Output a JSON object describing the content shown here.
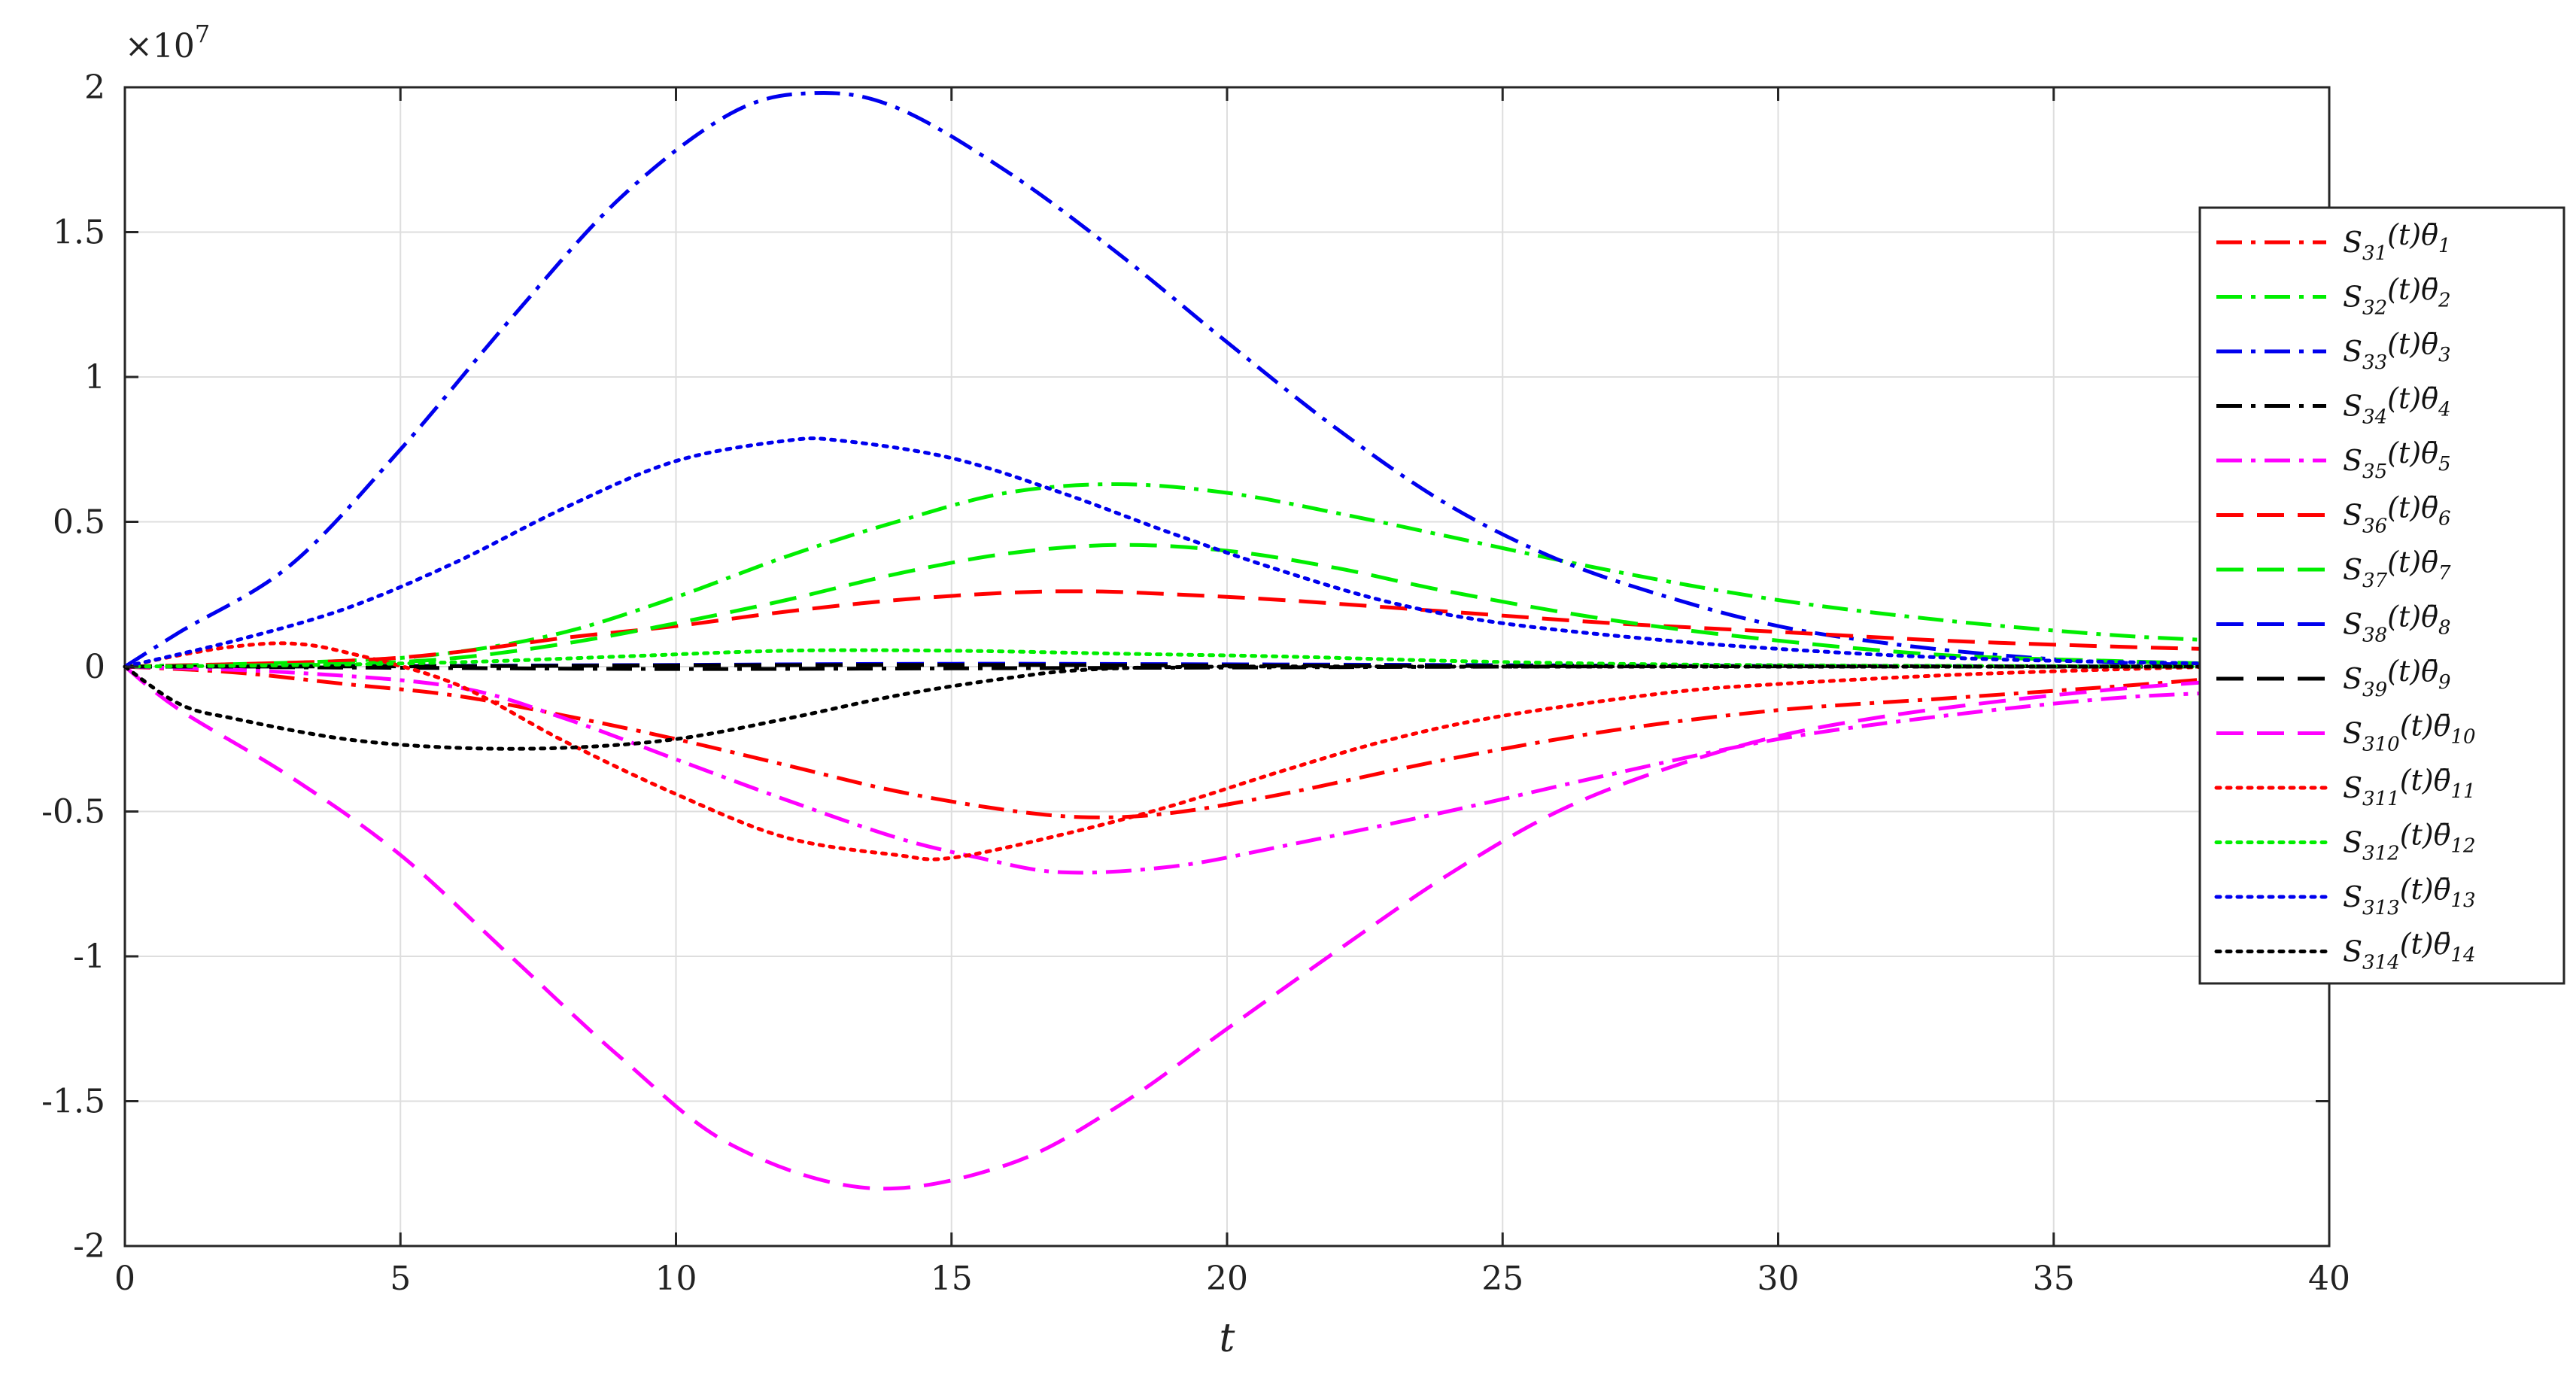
{
  "chart_data": {
    "type": "line",
    "title": "",
    "xlabel": "t",
    "ylabel": "",
    "xlim": [
      0,
      40
    ],
    "ylim": [
      -20000000,
      20000000
    ],
    "y_exponent_label": "×10",
    "y_exponent_power": "7",
    "xticks": [
      0,
      5,
      10,
      15,
      20,
      25,
      30,
      35,
      40
    ],
    "xtick_labels": [
      "0",
      "5",
      "10",
      "15",
      "20",
      "25",
      "30",
      "35",
      "40"
    ],
    "yticks": [
      -20000000,
      -15000000,
      -10000000,
      -5000000,
      0,
      5000000,
      10000000,
      15000000,
      20000000
    ],
    "ytick_labels": [
      "-2",
      "-1.5",
      "-1",
      "-0.5",
      "0",
      "0.5",
      "1",
      "1.5",
      "2"
    ],
    "grid": true,
    "legend_position": "right",
    "series": [
      {
        "name": "S31(t)θ̄1",
        "sub": "31",
        "theta_sub": "1",
        "color": "#ff0000",
        "style": "dashdot",
        "x": [
          0,
          2,
          4,
          6,
          8,
          10,
          12,
          14,
          16,
          17.5,
          19,
          21,
          24,
          27,
          30,
          33,
          36,
          38
        ],
        "y": [
          0,
          -200000,
          -600000,
          -1000000,
          -1700000,
          -2500000,
          -3400000,
          -4300000,
          -4950000,
          -5200000,
          -5050000,
          -4400000,
          -3200000,
          -2200000,
          -1500000,
          -1100000,
          -700000,
          -400000
        ]
      },
      {
        "name": "S32(t)θ̄2",
        "sub": "32",
        "theta_sub": "2",
        "color": "#00ee00",
        "style": "dashdot",
        "x": [
          0,
          4,
          6,
          8,
          10,
          12,
          14,
          16,
          18,
          20,
          22,
          24,
          27,
          30,
          33,
          36,
          38
        ],
        "y": [
          0,
          200000,
          500000,
          1200000,
          2400000,
          3800000,
          5000000,
          6000000,
          6300000,
          6000000,
          5300000,
          4500000,
          3300000,
          2300000,
          1600000,
          1100000,
          900000
        ]
      },
      {
        "name": "S33(t)θ̄3",
        "sub": "33",
        "theta_sub": "3",
        "color": "#0000ee",
        "style": "dashdot",
        "x": [
          0,
          1,
          3,
          5,
          7,
          9,
          11,
          12.5,
          14,
          16,
          18,
          20,
          22,
          24,
          26,
          28,
          30,
          32,
          34,
          36,
          38
        ],
        "y": [
          0,
          1200000,
          3500000,
          7500000,
          12000000,
          16200000,
          19100000,
          19800000,
          19300000,
          17100000,
          14300000,
          11200000,
          8200000,
          5600000,
          3700000,
          2400000,
          1400000,
          800000,
          400000,
          150000,
          50000
        ]
      },
      {
        "name": "S34(t)θ̄4",
        "sub": "34",
        "theta_sub": "4",
        "color": "#000000",
        "style": "dashdot",
        "x": [
          0,
          5,
          10,
          15,
          20,
          25,
          30,
          35,
          38
        ],
        "y": [
          0,
          -40000,
          -80000,
          -60000,
          -30000,
          0,
          20000,
          10000,
          0
        ]
      },
      {
        "name": "S35(t)θ̄5",
        "sub": "35",
        "theta_sub": "5",
        "color": "#ff00ff",
        "style": "dashdot",
        "x": [
          0,
          3,
          6,
          8,
          10,
          12,
          14,
          15.5,
          17,
          19,
          21,
          24,
          27,
          30,
          33,
          36,
          38
        ],
        "y": [
          0,
          -200000,
          -700000,
          -1800000,
          -3200000,
          -4600000,
          -5900000,
          -6600000,
          -7100000,
          -6900000,
          -6200000,
          -5000000,
          -3700000,
          -2500000,
          -1700000,
          -1100000,
          -900000
        ]
      },
      {
        "name": "S36(t)θ̄6",
        "sub": "36",
        "theta_sub": "6",
        "color": "#ff0000",
        "style": "dashed",
        "x": [
          0,
          4,
          6,
          8,
          10,
          12,
          14,
          16,
          17.5,
          19,
          21,
          24,
          27,
          30,
          33,
          36,
          38
        ],
        "y": [
          0,
          200000,
          500000,
          1000000,
          1400000,
          1900000,
          2300000,
          2550000,
          2600000,
          2500000,
          2300000,
          1900000,
          1500000,
          1200000,
          900000,
          700000,
          600000
        ]
      },
      {
        "name": "S37(t)θ̄7",
        "sub": "37",
        "theta_sub": "7",
        "color": "#00ee00",
        "style": "dashed",
        "x": [
          0,
          4,
          6,
          8,
          10,
          12,
          14,
          16,
          18,
          20,
          22,
          24,
          27,
          30,
          33,
          36,
          38
        ],
        "y": [
          0,
          100000,
          300000,
          800000,
          1500000,
          2300000,
          3200000,
          3900000,
          4200000,
          4000000,
          3400000,
          2600000,
          1600000,
          900000,
          400000,
          200000,
          100000
        ]
      },
      {
        "name": "S38(t)θ̄8",
        "sub": "38",
        "theta_sub": "8",
        "color": "#0000ee",
        "style": "dashed",
        "x": [
          0,
          5,
          10,
          15,
          20,
          25,
          30,
          35,
          38
        ],
        "y": [
          0,
          20000,
          60000,
          100000,
          80000,
          50000,
          20000,
          10000,
          0
        ]
      },
      {
        "name": "S39(t)θ̄9",
        "sub": "39",
        "theta_sub": "9",
        "color": "#000000",
        "style": "dashed",
        "x": [
          0,
          5,
          10,
          15,
          20,
          25,
          30,
          35,
          38
        ],
        "y": [
          0,
          10000,
          40000,
          60000,
          40000,
          20000,
          10000,
          0,
          0
        ]
      },
      {
        "name": "S310(t)θ̄10",
        "sub": "310",
        "theta_sub": "10",
        "color": "#ff00ff",
        "style": "dashed",
        "x": [
          0,
          1,
          3,
          5,
          7,
          9,
          11,
          13.5,
          16,
          18,
          20,
          22,
          24,
          26,
          28,
          30,
          32,
          34,
          36,
          38
        ],
        "y": [
          0,
          -1500000,
          -3800000,
          -6500000,
          -10000000,
          -13500000,
          -16500000,
          -18000000,
          -17200000,
          -15200000,
          -12500000,
          -9800000,
          -7200000,
          -5000000,
          -3500000,
          -2400000,
          -1700000,
          -1200000,
          -800000,
          -500000
        ]
      },
      {
        "name": "S311(t)θ̄11",
        "sub": "311",
        "theta_sub": "11",
        "color": "#ff0000",
        "style": "dotted",
        "x": [
          0,
          1,
          2,
          3,
          4,
          6,
          8,
          10,
          12,
          14,
          15,
          17,
          19,
          21,
          23,
          25,
          28,
          30,
          33,
          36,
          38
        ],
        "y": [
          0,
          400000,
          700000,
          800000,
          500000,
          -600000,
          -2600000,
          -4400000,
          -5900000,
          -6500000,
          -6600000,
          -5800000,
          -4800000,
          -3600000,
          -2500000,
          -1700000,
          -900000,
          -600000,
          -300000,
          -100000,
          0
        ]
      },
      {
        "name": "S312(t)θ̄12",
        "sub": "312",
        "theta_sub": "12",
        "color": "#00ee00",
        "style": "dotted",
        "x": [
          0,
          3,
          6,
          9,
          12,
          15,
          18,
          21,
          24,
          27,
          30,
          34,
          38
        ],
        "y": [
          0,
          50000,
          150000,
          350000,
          550000,
          550000,
          450000,
          350000,
          200000,
          100000,
          50000,
          20000,
          0
        ]
      },
      {
        "name": "S313(t)θ̄13",
        "sub": "313",
        "theta_sub": "13",
        "color": "#0000ee",
        "style": "dotted",
        "x": [
          0,
          2,
          4,
          6,
          8,
          10,
          12,
          13,
          15,
          17,
          19,
          21,
          23,
          25,
          28,
          31,
          34,
          38
        ],
        "y": [
          0,
          900000,
          2000000,
          3600000,
          5500000,
          7100000,
          7800000,
          7800000,
          7200000,
          6000000,
          4600000,
          3300000,
          2200000,
          1500000,
          900000,
          500000,
          250000,
          100000
        ]
      },
      {
        "name": "S314(t)θ̄14",
        "sub": "314",
        "theta_sub": "14",
        "color": "#000000",
        "style": "dotted",
        "x": [
          0,
          1,
          2,
          4,
          6,
          8,
          10,
          12,
          14,
          16,
          17.5,
          20,
          25,
          30,
          38
        ],
        "y": [
          0,
          -1300000,
          -1800000,
          -2500000,
          -2800000,
          -2800000,
          -2500000,
          -1800000,
          -1000000,
          -400000,
          -100000,
          0,
          0,
          0,
          0
        ]
      }
    ]
  }
}
